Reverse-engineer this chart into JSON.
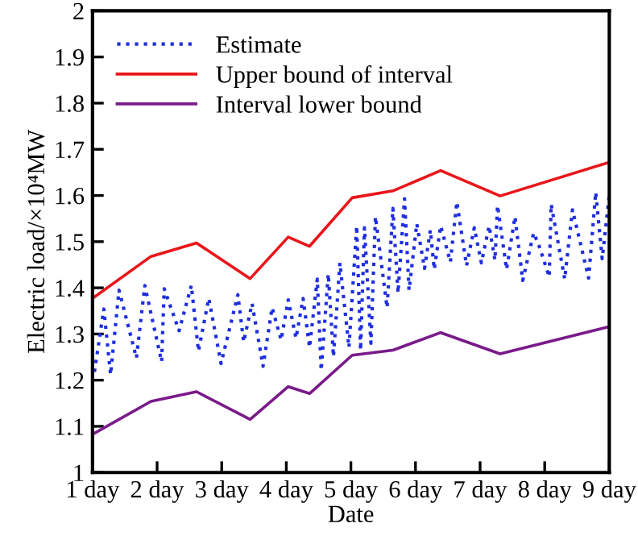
{
  "chart_data": {
    "type": "line",
    "xlabel": "Date",
    "ylabel": "Electric load/×10⁴MW",
    "xlim": [
      1,
      9
    ],
    "ylim": [
      1,
      2
    ],
    "xticks": [
      {
        "value": 1,
        "label": "1 day"
      },
      {
        "value": 2,
        "label": "2 day"
      },
      {
        "value": 3,
        "label": "3 day"
      },
      {
        "value": 4,
        "label": "4 day"
      },
      {
        "value": 5,
        "label": "5 day"
      },
      {
        "value": 6,
        "label": "6 day"
      },
      {
        "value": 7,
        "label": "7 day"
      },
      {
        "value": 8,
        "label": "8 day"
      },
      {
        "value": 9,
        "label": "9 day"
      }
    ],
    "yticks": [
      1,
      1.1,
      1.2,
      1.3,
      1.4,
      1.5,
      1.6,
      1.7,
      1.8,
      1.9,
      2
    ],
    "grid": false,
    "legend": "top left",
    "marker": "none",
    "series": [
      {
        "name": "Estimate",
        "color": "#1f2ee0",
        "line_style": "dotted",
        "x": [
          1.03,
          1.175,
          1.28,
          1.41,
          1.68,
          1.81,
          2.07,
          2.11,
          2.34,
          2.53,
          2.64,
          2.8,
          2.99,
          3.25,
          3.34,
          3.47,
          3.64,
          3.78,
          3.92,
          4.03,
          4.15,
          4.26,
          4.36,
          4.48,
          4.54,
          4.65,
          4.73,
          4.83,
          4.97,
          5.09,
          5.15,
          5.21,
          5.31,
          5.38,
          5.56,
          5.65,
          5.73,
          5.83,
          5.9,
          6.02,
          6.14,
          6.23,
          6.29,
          6.39,
          6.54,
          6.64,
          6.79,
          6.91,
          7.02,
          7.14,
          7.23,
          7.27,
          7.41,
          7.54,
          7.66,
          7.83,
          7.91,
          8.07,
          8.1,
          8.31,
          8.43,
          8.68,
          8.79,
          8.89,
          9.0
        ],
        "values": [
          1.218,
          1.354,
          1.212,
          1.395,
          1.248,
          1.405,
          1.24,
          1.398,
          1.307,
          1.405,
          1.263,
          1.377,
          1.236,
          1.385,
          1.283,
          1.366,
          1.23,
          1.357,
          1.287,
          1.374,
          1.291,
          1.377,
          1.271,
          1.419,
          1.221,
          1.43,
          1.251,
          1.454,
          1.271,
          1.534,
          1.265,
          1.53,
          1.28,
          1.554,
          1.357,
          1.572,
          1.389,
          1.593,
          1.395,
          1.539,
          1.442,
          1.525,
          1.44,
          1.534,
          1.456,
          1.586,
          1.448,
          1.53,
          1.454,
          1.534,
          1.46,
          1.578,
          1.44,
          1.554,
          1.416,
          1.519,
          1.492,
          1.424,
          1.581,
          1.419,
          1.569,
          1.421,
          1.607,
          1.463,
          1.601
        ]
      },
      {
        "name": "Upper bound of interval",
        "color": "#e8161b",
        "line_style": "solid",
        "x": [
          1.03,
          1.905,
          2.61,
          3.44,
          4.03,
          4.36,
          5.02,
          5.65,
          6.39,
          7.31,
          9.0
        ],
        "values": [
          1.38,
          1.468,
          1.497,
          1.42,
          1.51,
          1.49,
          1.595,
          1.61,
          1.654,
          1.599,
          1.672
        ]
      },
      {
        "name": "Interval lower bound",
        "color": "#7a1a8a",
        "line_style": "solid",
        "x": [
          1.03,
          1.905,
          2.61,
          3.44,
          4.03,
          4.36,
          5.02,
          5.65,
          6.39,
          7.31,
          9.0
        ],
        "values": [
          1.085,
          1.154,
          1.175,
          1.115,
          1.186,
          1.171,
          1.254,
          1.265,
          1.303,
          1.257,
          1.316
        ]
      }
    ]
  }
}
